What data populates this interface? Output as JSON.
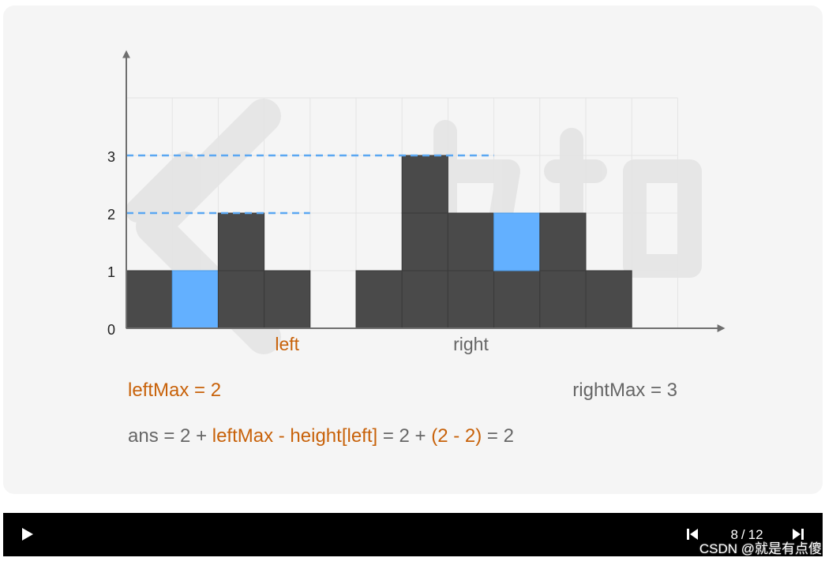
{
  "colors": {
    "bar": "#4a4a4a",
    "water": "#63b0ff",
    "dashed": "#5ba7f2",
    "orange": "#c8620a",
    "gray_text": "#666666",
    "axis": "#6f6f6f",
    "card_bg": "#f5f5f5",
    "player_bg": "#000000"
  },
  "chart_data": {
    "type": "bar",
    "x": [
      1,
      2,
      3,
      4,
      6,
      7,
      8,
      9,
      10,
      11
    ],
    "heights": [
      1,
      0,
      2,
      1,
      1,
      3,
      2,
      1,
      2,
      1
    ],
    "water": [
      0,
      1,
      0,
      0,
      0,
      0,
      0,
      1,
      0,
      0
    ],
    "y_ticks": [
      "0",
      "1",
      "2",
      "3"
    ],
    "ylim": [
      0,
      4
    ],
    "xlim": [
      0,
      12
    ],
    "grid": true,
    "dashed_levels": [
      {
        "value": 2,
        "to_x": 4
      },
      {
        "value": 3,
        "to_x": 8
      }
    ],
    "pointers": [
      {
        "label": "left",
        "x": 3.5,
        "color": "orange"
      },
      {
        "label": "right",
        "x": 7.5,
        "color": "gray"
      }
    ]
  },
  "info": {
    "left_max": "leftMax = 2",
    "right_max": "rightMax = 3",
    "formula": {
      "p1": "ans = 2 + ",
      "p2": "leftMax - height[left]",
      "p3": " = 2 + ",
      "p4": "(2 - 2)",
      "p5": " = 2"
    }
  },
  "player": {
    "current_page": "8",
    "separator": "/",
    "total_pages": "12"
  },
  "watermark": "CSDN @就是有点傻"
}
